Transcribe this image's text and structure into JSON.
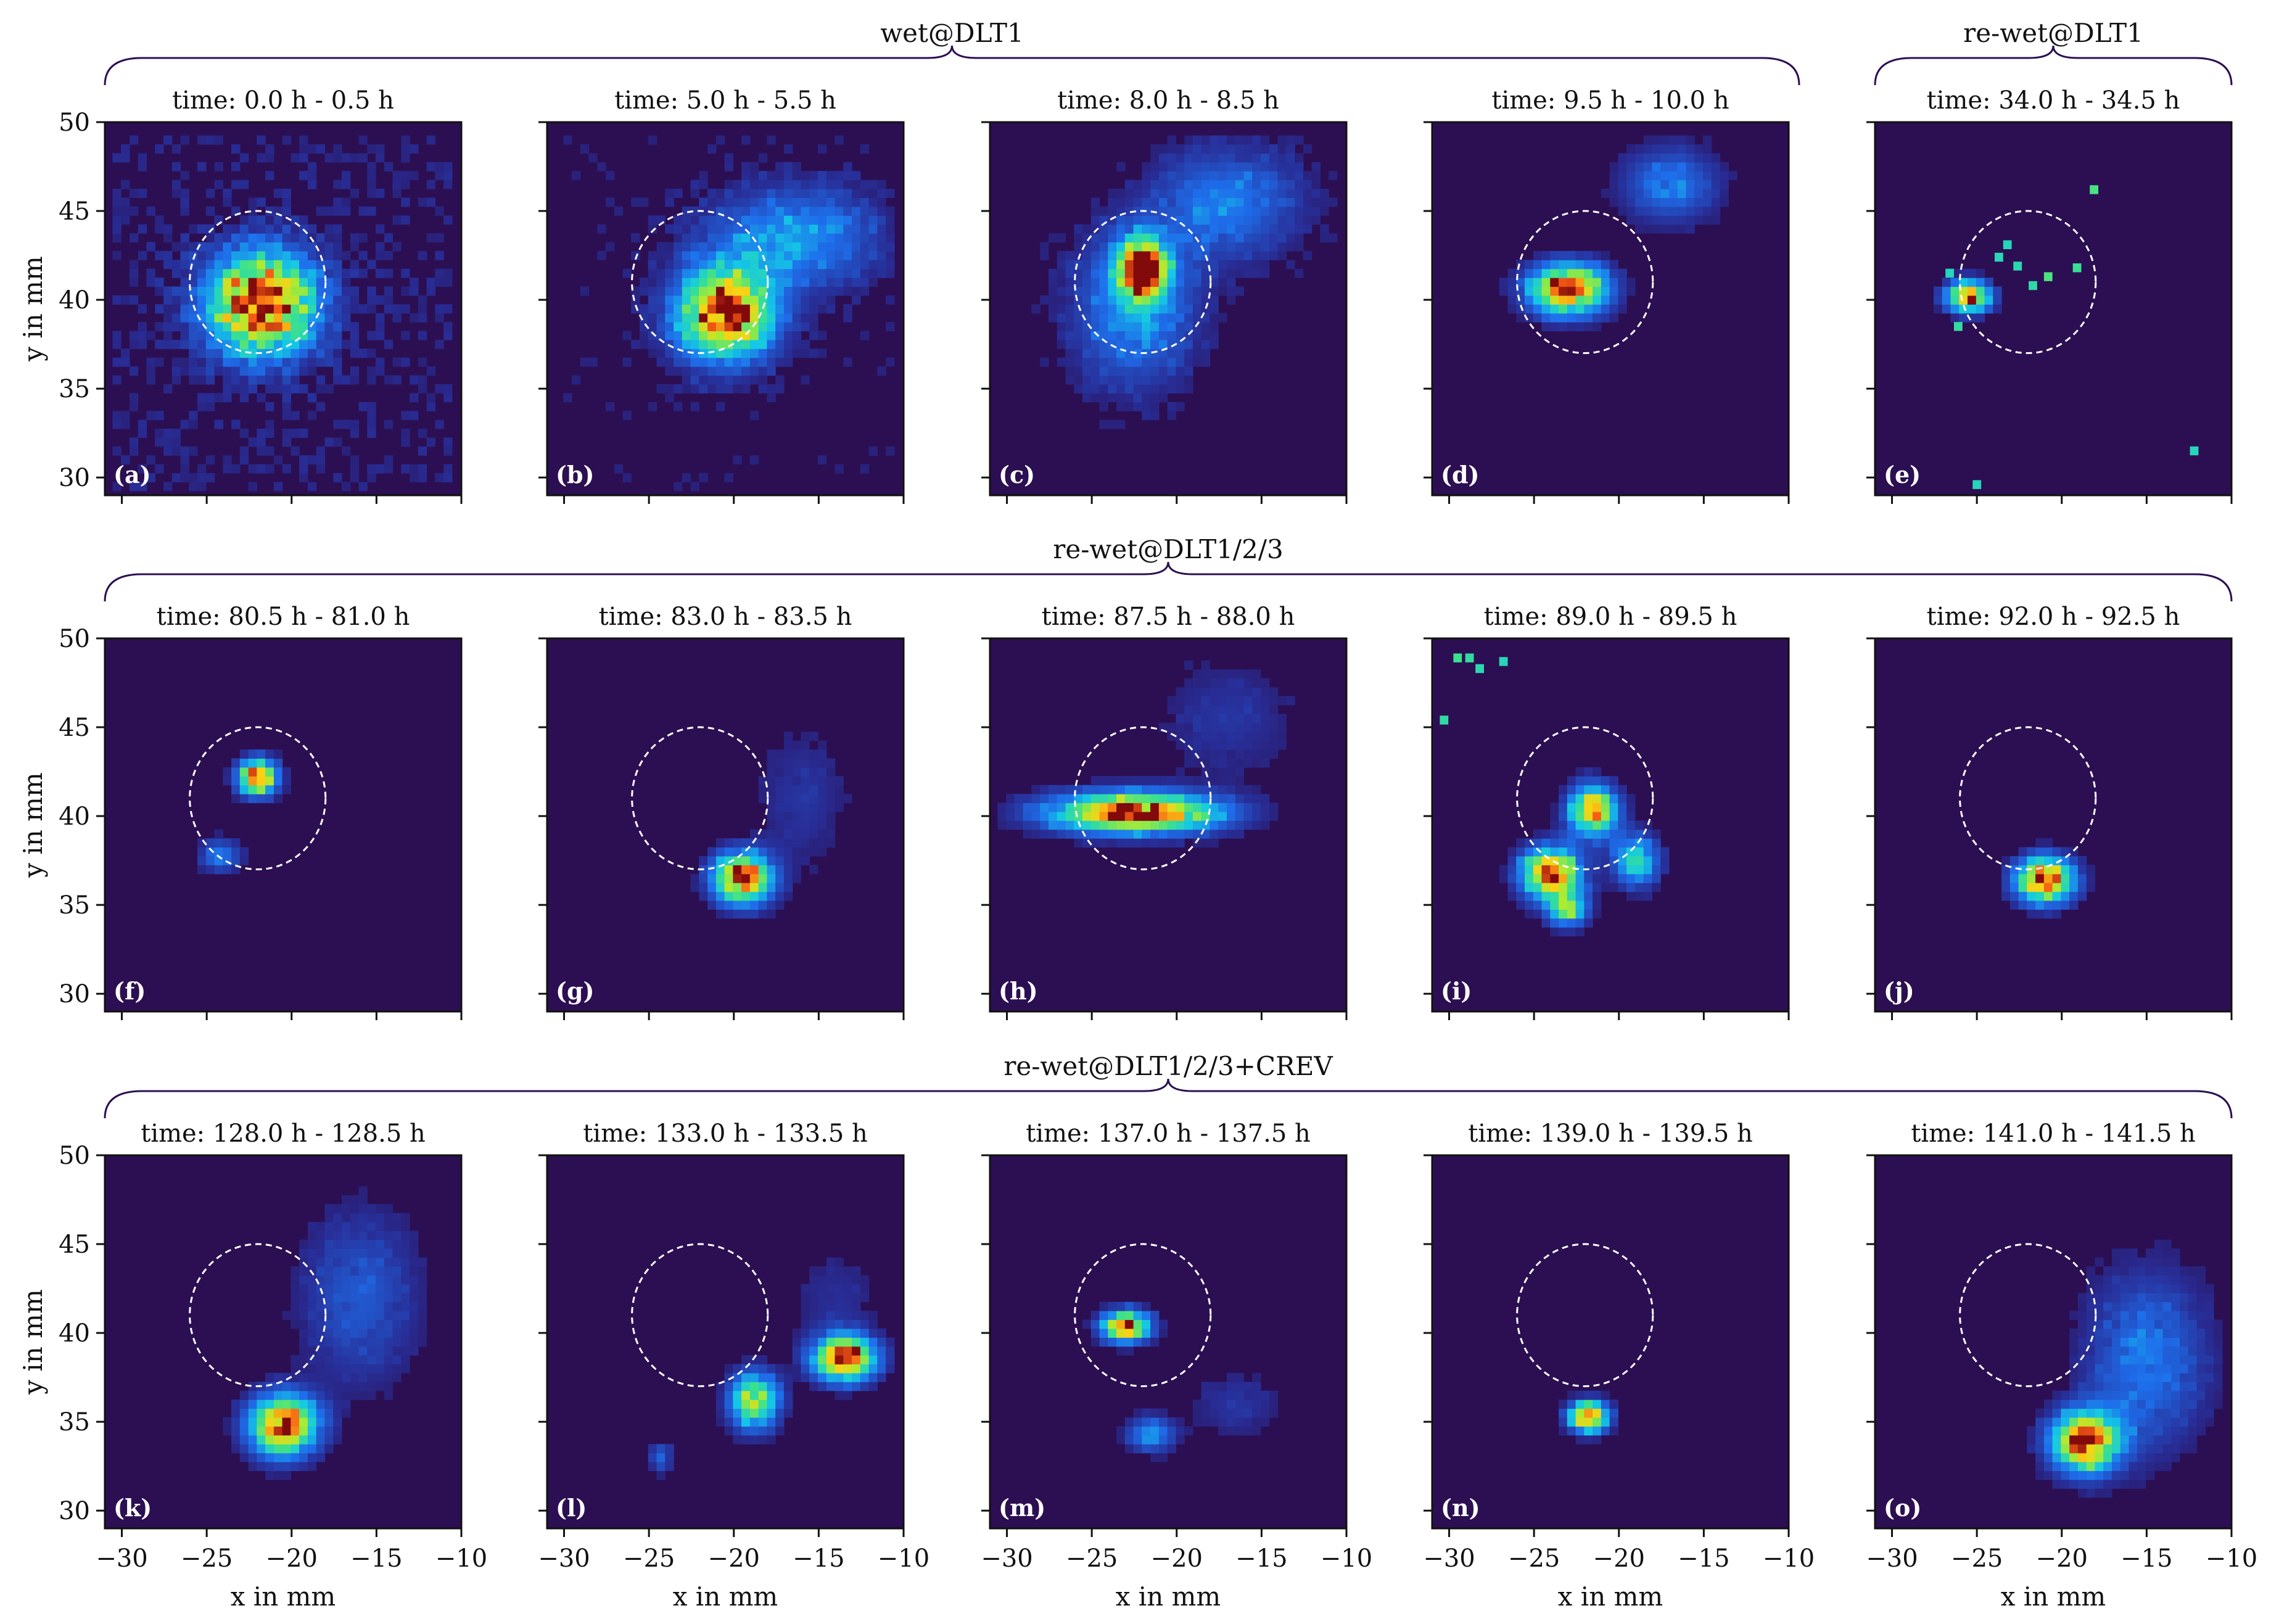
{
  "figure": {
    "background": "#ffffff",
    "panel_background": "#2c0f52"
  },
  "group_labels": [
    "wet@DLT1",
    "re-wet@DLT1",
    "re-wet@DLT1/2/3",
    "re-wet@DLT1/2/3+CREV"
  ],
  "chart_data": {
    "type": "heatmap",
    "layout": {
      "rows": 3,
      "cols": 5
    },
    "shared_axes": {
      "xlabel": "x in mm",
      "ylabel": "y in mm",
      "xlim": [
        -31,
        -10
      ],
      "ylim": [
        29,
        50
      ],
      "xticks": [
        -30,
        -25,
        -20,
        -15,
        -10
      ],
      "yticks": [
        30,
        35,
        40,
        45,
        50
      ]
    },
    "colormap": "jet-like (dark purple → blue → cyan → green → yellow → red → dark red)",
    "reference_circle": {
      "center": [
        -22,
        41
      ],
      "radius": 4,
      "style": "dashed white"
    },
    "groups": [
      {
        "label": "wet@DLT1",
        "panels": [
          "a",
          "b",
          "c",
          "d"
        ]
      },
      {
        "label": "re-wet@DLT1",
        "panels": [
          "e"
        ]
      },
      {
        "label": "re-wet@DLT1/2/3",
        "panels": [
          "f",
          "g",
          "h",
          "i",
          "j"
        ]
      },
      {
        "label": "re-wet@DLT1/2/3+CREV",
        "panels": [
          "k",
          "l",
          "m",
          "n",
          "o"
        ]
      }
    ],
    "panels": [
      {
        "letter": "(a)",
        "title": "time:  0.0 h - 0.5 h",
        "blobs": [
          {
            "x": -21.8,
            "y": 39.8,
            "sx": 2.2,
            "sy": 2.0,
            "amp": 1.0
          }
        ],
        "noise": 0.45
      },
      {
        "letter": "(b)",
        "title": "time:  5.0 h - 5.5 h",
        "blobs": [
          {
            "x": -20.5,
            "y": 39.2,
            "sx": 2.0,
            "sy": 1.8,
            "amp": 1.0
          },
          {
            "x": -16.5,
            "y": 43.5,
            "sx": 3.5,
            "sy": 2.0,
            "amp": 0.35
          }
        ],
        "noise": 0.3
      },
      {
        "letter": "(c)",
        "title": "time:  8.0 h - 8.5 h",
        "blobs": [
          {
            "x": -22.0,
            "y": 41.8,
            "sx": 1.0,
            "sy": 1.2,
            "amp": 1.0
          },
          {
            "x": -22.5,
            "y": 39.5,
            "sx": 2.5,
            "sy": 3.0,
            "amp": 0.35
          },
          {
            "x": -17.0,
            "y": 45.5,
            "sx": 3.0,
            "sy": 2.2,
            "amp": 0.3
          }
        ],
        "noise": 0.18
      },
      {
        "letter": "(d)",
        "title": "time:  9.5 h - 10.0 h",
        "blobs": [
          {
            "x": -23.0,
            "y": 40.6,
            "sx": 1.6,
            "sy": 1.0,
            "amp": 1.0
          },
          {
            "x": -17.0,
            "y": 46.5,
            "sx": 2.0,
            "sy": 1.5,
            "amp": 0.3
          }
        ],
        "noise": 0.08
      },
      {
        "letter": "(e)",
        "title": "time:  34.0 h - 34.5 h",
        "blobs": [
          {
            "x": -25.5,
            "y": 40.2,
            "sx": 0.9,
            "sy": 0.6,
            "amp": 1.0
          }
        ],
        "noise": 0.0,
        "points": [
          [
            -23.7,
            42.4
          ],
          [
            -23.2,
            43.1
          ],
          [
            -22.6,
            41.9
          ],
          [
            -21.7,
            40.8
          ],
          [
            -20.8,
            41.3
          ],
          [
            -19.1,
            41.8
          ],
          [
            -18.1,
            46.2
          ],
          [
            -26.1,
            38.5
          ],
          [
            -26.6,
            41.5
          ],
          [
            -12.2,
            31.5
          ],
          [
            -25.0,
            29.6
          ]
        ]
      },
      {
        "letter": "(f)",
        "title": "time:  80.5 h - 81.0 h",
        "blobs": [
          {
            "x": -22.0,
            "y": 42.2,
            "sx": 0.8,
            "sy": 0.7,
            "amp": 1.0
          },
          {
            "x": -24.2,
            "y": 37.8,
            "sx": 0.9,
            "sy": 0.7,
            "amp": 0.3
          }
        ],
        "noise": 0.0
      },
      {
        "letter": "(g)",
        "title": "time:  83.0 h - 83.5 h",
        "blobs": [
          {
            "x": -19.5,
            "y": 36.5,
            "sx": 1.2,
            "sy": 1.0,
            "amp": 1.0
          },
          {
            "x": -16.0,
            "y": 41.0,
            "sx": 2.0,
            "sy": 3.0,
            "amp": 0.12
          }
        ],
        "noise": 0.02
      },
      {
        "letter": "(h)",
        "title": "time:  87.5 h - 88.0 h",
        "blobs": [
          {
            "x": -22.5,
            "y": 40.2,
            "sx": 3.5,
            "sy": 0.8,
            "amp": 1.0
          },
          {
            "x": -17.0,
            "y": 45.5,
            "sx": 3.0,
            "sy": 2.5,
            "amp": 0.12
          }
        ],
        "noise": 0.05
      },
      {
        "letter": "(i)",
        "title": "time:  89.0 h - 89.5 h",
        "blobs": [
          {
            "x": -21.5,
            "y": 40.3,
            "sx": 1.0,
            "sy": 1.0,
            "amp": 0.85
          },
          {
            "x": -24.0,
            "y": 36.8,
            "sx": 1.2,
            "sy": 1.0,
            "amp": 1.0
          },
          {
            "x": -23.0,
            "y": 34.8,
            "sx": 0.8,
            "sy": 0.7,
            "amp": 0.6
          },
          {
            "x": -19.0,
            "y": 37.5,
            "sx": 0.9,
            "sy": 1.0,
            "amp": 0.55
          }
        ],
        "noise": 0.1,
        "points": [
          [
            -29.5,
            48.9
          ],
          [
            -28.8,
            48.9
          ],
          [
            -28.2,
            48.3
          ],
          [
            -30.3,
            45.4
          ],
          [
            -26.8,
            48.7
          ]
        ]
      },
      {
        "letter": "(j)",
        "title": "time:  92.0 h - 92.5 h",
        "blobs": [
          {
            "x": -21.0,
            "y": 36.4,
            "sx": 1.2,
            "sy": 0.9,
            "amp": 1.0
          }
        ],
        "noise": 0.0
      },
      {
        "letter": "(k)",
        "title": "time:  128.0 h - 128.5 h",
        "blobs": [
          {
            "x": -20.5,
            "y": 34.8,
            "sx": 1.4,
            "sy": 1.2,
            "amp": 1.0
          },
          {
            "x": -16.0,
            "y": 42.0,
            "sx": 2.5,
            "sy": 3.5,
            "amp": 0.22
          }
        ],
        "noise": 0.03
      },
      {
        "letter": "(l)",
        "title": "time:  133.0 h - 133.5 h",
        "blobs": [
          {
            "x": -13.5,
            "y": 38.6,
            "sx": 1.3,
            "sy": 0.9,
            "amp": 1.0
          },
          {
            "x": -18.8,
            "y": 36.2,
            "sx": 1.0,
            "sy": 1.1,
            "amp": 0.75
          },
          {
            "x": -24.3,
            "y": 33.0,
            "sx": 0.5,
            "sy": 0.6,
            "amp": 0.25
          },
          {
            "x": -14.0,
            "y": 42.0,
            "sx": 2.0,
            "sy": 2.0,
            "amp": 0.1
          }
        ],
        "noise": 0.02
      },
      {
        "letter": "(m)",
        "title": "time:  137.0 h - 137.5 h",
        "blobs": [
          {
            "x": -23.0,
            "y": 40.4,
            "sx": 1.0,
            "sy": 0.6,
            "amp": 1.0
          },
          {
            "x": -21.5,
            "y": 34.3,
            "sx": 1.0,
            "sy": 0.7,
            "amp": 0.35
          },
          {
            "x": -16.5,
            "y": 36.0,
            "sx": 2.0,
            "sy": 1.5,
            "amp": 0.12
          }
        ],
        "noise": 0.01
      },
      {
        "letter": "(n)",
        "title": "time:  139.0 h - 139.5 h",
        "blobs": [
          {
            "x": -21.8,
            "y": 35.3,
            "sx": 0.8,
            "sy": 0.6,
            "amp": 1.0
          }
        ],
        "noise": 0.0
      },
      {
        "letter": "(o)",
        "title": "time:  141.0 h - 141.5 h",
        "blobs": [
          {
            "x": -18.6,
            "y": 33.9,
            "sx": 1.4,
            "sy": 1.2,
            "amp": 1.0
          },
          {
            "x": -15.0,
            "y": 38.5,
            "sx": 2.5,
            "sy": 3.5,
            "amp": 0.3
          }
        ],
        "noise": 0.06
      }
    ]
  }
}
